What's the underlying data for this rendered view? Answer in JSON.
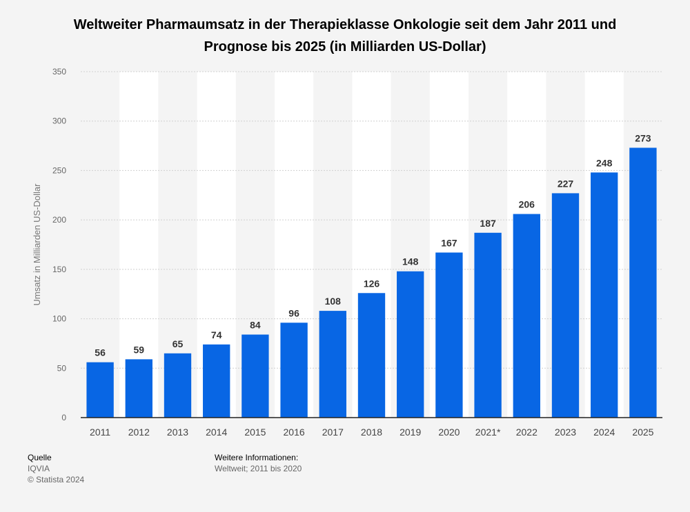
{
  "chart_data": {
    "type": "bar",
    "title": "Weltweiter Pharmaumsatz in der Therapieklasse Onkologie seit dem Jahr 2011 und Prognose bis 2025 (in Milliarden US-Dollar)",
    "xlabel": "",
    "ylabel": "Umsatz in Milliarden US-Dollar",
    "categories": [
      "2011",
      "2012",
      "2013",
      "2014",
      "2015",
      "2016",
      "2017",
      "2018",
      "2019",
      "2020",
      "2021*",
      "2022",
      "2023",
      "2024",
      "2025"
    ],
    "values": [
      56,
      59,
      65,
      74,
      84,
      96,
      108,
      126,
      148,
      167,
      187,
      206,
      227,
      248,
      273
    ],
    "ylim": [
      0,
      350
    ],
    "yticks": [
      0,
      50,
      100,
      150,
      200,
      250,
      300,
      350
    ],
    "grid": true,
    "legend": "none",
    "bar_color": "#0866e4"
  },
  "footer": {
    "source_heading": "Quelle",
    "source_name": "IQVIA",
    "copyright": "© Statista 2024",
    "info_heading": "Weitere Informationen:",
    "info_text": "Weltweit; 2011 bis 2020"
  }
}
